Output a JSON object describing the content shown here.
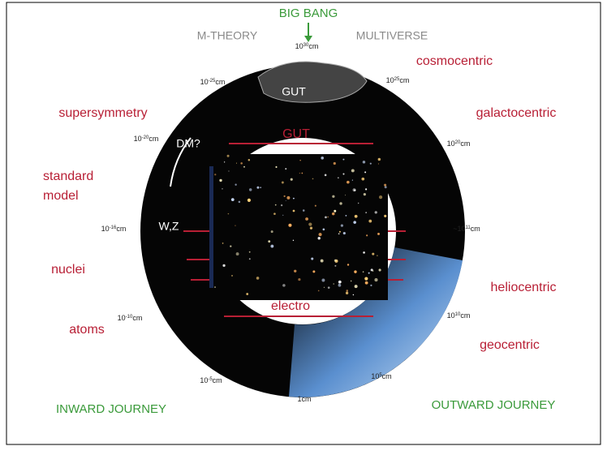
{
  "header": {
    "big_bang": "BIG BANG",
    "m_theory": "M-THEORY",
    "multiverse": "MULTIVERSE"
  },
  "outward": [
    "cosmocentric",
    "galactocentric",
    "heliocentric",
    "geocentric"
  ],
  "inward": [
    "supersymmetry",
    [
      "standard",
      "model"
    ],
    "nuclei",
    "atoms"
  ],
  "center": {
    "gut": "GUT",
    "electro": "electro"
  },
  "inner_labels": [
    "GUT",
    "DM?",
    "W,Z"
  ],
  "ring_labels": [
    {
      "base": "10",
      "exp": "30",
      "unit": "cm"
    },
    {
      "base": "10",
      "exp": "-25",
      "unit": "cm"
    },
    {
      "base": "10",
      "exp": "25",
      "unit": "cm"
    },
    {
      "base": "10",
      "exp": "-20",
      "unit": "cm"
    },
    {
      "base": "10",
      "exp": "20",
      "unit": "cm"
    },
    {
      "base": "10",
      "exp": "-16",
      "unit": "cm"
    },
    {
      "base": "~10",
      "exp": "11",
      "unit": "cm"
    },
    {
      "base": "10",
      "exp": "-10",
      "unit": "cm"
    },
    {
      "base": "10",
      "exp": "10",
      "unit": "cm"
    },
    {
      "base": "10",
      "exp": "-5",
      "unit": "cm"
    },
    {
      "base": "10",
      "exp": "5",
      "unit": "cm"
    },
    {
      "base": "1",
      "exp": "",
      "unit": "cm"
    }
  ],
  "journeys": {
    "inward": "INWARD JOURNEY",
    "outward": "OUTWARD JOURNEY"
  }
}
